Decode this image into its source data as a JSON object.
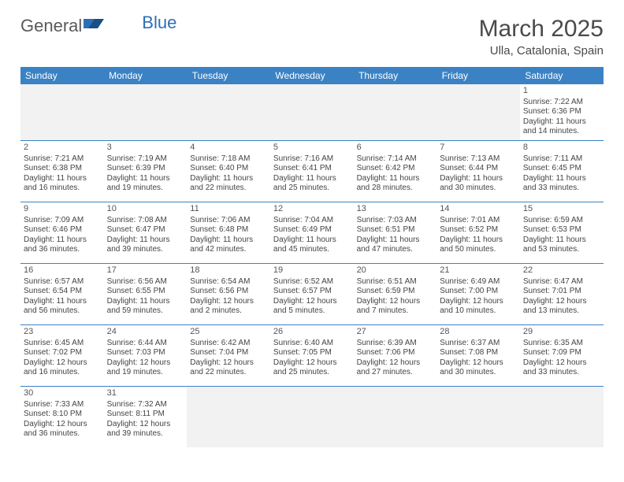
{
  "logo": {
    "word1": "General",
    "word2": "Blue"
  },
  "title": "March 2025",
  "location": "Ulla, Catalonia, Spain",
  "colors": {
    "header_bg": "#3b82c4",
    "header_text": "#ffffff",
    "border": "#3b82c4",
    "blank_bg": "#f2f2f2",
    "logo_gray": "#5a5a5a",
    "logo_blue": "#2d6fb5"
  },
  "day_headers": [
    "Sunday",
    "Monday",
    "Tuesday",
    "Wednesday",
    "Thursday",
    "Friday",
    "Saturday"
  ],
  "weeks": [
    [
      null,
      null,
      null,
      null,
      null,
      null,
      {
        "n": "1",
        "l1": "Sunrise: 7:22 AM",
        "l2": "Sunset: 6:36 PM",
        "l3": "Daylight: 11 hours",
        "l4": "and 14 minutes."
      }
    ],
    [
      {
        "n": "2",
        "l1": "Sunrise: 7:21 AM",
        "l2": "Sunset: 6:38 PM",
        "l3": "Daylight: 11 hours",
        "l4": "and 16 minutes."
      },
      {
        "n": "3",
        "l1": "Sunrise: 7:19 AM",
        "l2": "Sunset: 6:39 PM",
        "l3": "Daylight: 11 hours",
        "l4": "and 19 minutes."
      },
      {
        "n": "4",
        "l1": "Sunrise: 7:18 AM",
        "l2": "Sunset: 6:40 PM",
        "l3": "Daylight: 11 hours",
        "l4": "and 22 minutes."
      },
      {
        "n": "5",
        "l1": "Sunrise: 7:16 AM",
        "l2": "Sunset: 6:41 PM",
        "l3": "Daylight: 11 hours",
        "l4": "and 25 minutes."
      },
      {
        "n": "6",
        "l1": "Sunrise: 7:14 AM",
        "l2": "Sunset: 6:42 PM",
        "l3": "Daylight: 11 hours",
        "l4": "and 28 minutes."
      },
      {
        "n": "7",
        "l1": "Sunrise: 7:13 AM",
        "l2": "Sunset: 6:44 PM",
        "l3": "Daylight: 11 hours",
        "l4": "and 30 minutes."
      },
      {
        "n": "8",
        "l1": "Sunrise: 7:11 AM",
        "l2": "Sunset: 6:45 PM",
        "l3": "Daylight: 11 hours",
        "l4": "and 33 minutes."
      }
    ],
    [
      {
        "n": "9",
        "l1": "Sunrise: 7:09 AM",
        "l2": "Sunset: 6:46 PM",
        "l3": "Daylight: 11 hours",
        "l4": "and 36 minutes."
      },
      {
        "n": "10",
        "l1": "Sunrise: 7:08 AM",
        "l2": "Sunset: 6:47 PM",
        "l3": "Daylight: 11 hours",
        "l4": "and 39 minutes."
      },
      {
        "n": "11",
        "l1": "Sunrise: 7:06 AM",
        "l2": "Sunset: 6:48 PM",
        "l3": "Daylight: 11 hours",
        "l4": "and 42 minutes."
      },
      {
        "n": "12",
        "l1": "Sunrise: 7:04 AM",
        "l2": "Sunset: 6:49 PM",
        "l3": "Daylight: 11 hours",
        "l4": "and 45 minutes."
      },
      {
        "n": "13",
        "l1": "Sunrise: 7:03 AM",
        "l2": "Sunset: 6:51 PM",
        "l3": "Daylight: 11 hours",
        "l4": "and 47 minutes."
      },
      {
        "n": "14",
        "l1": "Sunrise: 7:01 AM",
        "l2": "Sunset: 6:52 PM",
        "l3": "Daylight: 11 hours",
        "l4": "and 50 minutes."
      },
      {
        "n": "15",
        "l1": "Sunrise: 6:59 AM",
        "l2": "Sunset: 6:53 PM",
        "l3": "Daylight: 11 hours",
        "l4": "and 53 minutes."
      }
    ],
    [
      {
        "n": "16",
        "l1": "Sunrise: 6:57 AM",
        "l2": "Sunset: 6:54 PM",
        "l3": "Daylight: 11 hours",
        "l4": "and 56 minutes."
      },
      {
        "n": "17",
        "l1": "Sunrise: 6:56 AM",
        "l2": "Sunset: 6:55 PM",
        "l3": "Daylight: 11 hours",
        "l4": "and 59 minutes."
      },
      {
        "n": "18",
        "l1": "Sunrise: 6:54 AM",
        "l2": "Sunset: 6:56 PM",
        "l3": "Daylight: 12 hours",
        "l4": "and 2 minutes."
      },
      {
        "n": "19",
        "l1": "Sunrise: 6:52 AM",
        "l2": "Sunset: 6:57 PM",
        "l3": "Daylight: 12 hours",
        "l4": "and 5 minutes."
      },
      {
        "n": "20",
        "l1": "Sunrise: 6:51 AM",
        "l2": "Sunset: 6:59 PM",
        "l3": "Daylight: 12 hours",
        "l4": "and 7 minutes."
      },
      {
        "n": "21",
        "l1": "Sunrise: 6:49 AM",
        "l2": "Sunset: 7:00 PM",
        "l3": "Daylight: 12 hours",
        "l4": "and 10 minutes."
      },
      {
        "n": "22",
        "l1": "Sunrise: 6:47 AM",
        "l2": "Sunset: 7:01 PM",
        "l3": "Daylight: 12 hours",
        "l4": "and 13 minutes."
      }
    ],
    [
      {
        "n": "23",
        "l1": "Sunrise: 6:45 AM",
        "l2": "Sunset: 7:02 PM",
        "l3": "Daylight: 12 hours",
        "l4": "and 16 minutes."
      },
      {
        "n": "24",
        "l1": "Sunrise: 6:44 AM",
        "l2": "Sunset: 7:03 PM",
        "l3": "Daylight: 12 hours",
        "l4": "and 19 minutes."
      },
      {
        "n": "25",
        "l1": "Sunrise: 6:42 AM",
        "l2": "Sunset: 7:04 PM",
        "l3": "Daylight: 12 hours",
        "l4": "and 22 minutes."
      },
      {
        "n": "26",
        "l1": "Sunrise: 6:40 AM",
        "l2": "Sunset: 7:05 PM",
        "l3": "Daylight: 12 hours",
        "l4": "and 25 minutes."
      },
      {
        "n": "27",
        "l1": "Sunrise: 6:39 AM",
        "l2": "Sunset: 7:06 PM",
        "l3": "Daylight: 12 hours",
        "l4": "and 27 minutes."
      },
      {
        "n": "28",
        "l1": "Sunrise: 6:37 AM",
        "l2": "Sunset: 7:08 PM",
        "l3": "Daylight: 12 hours",
        "l4": "and 30 minutes."
      },
      {
        "n": "29",
        "l1": "Sunrise: 6:35 AM",
        "l2": "Sunset: 7:09 PM",
        "l3": "Daylight: 12 hours",
        "l4": "and 33 minutes."
      }
    ],
    [
      {
        "n": "30",
        "l1": "Sunrise: 7:33 AM",
        "l2": "Sunset: 8:10 PM",
        "l3": "Daylight: 12 hours",
        "l4": "and 36 minutes."
      },
      {
        "n": "31",
        "l1": "Sunrise: 7:32 AM",
        "l2": "Sunset: 8:11 PM",
        "l3": "Daylight: 12 hours",
        "l4": "and 39 minutes."
      },
      null,
      null,
      null,
      null,
      null
    ]
  ]
}
